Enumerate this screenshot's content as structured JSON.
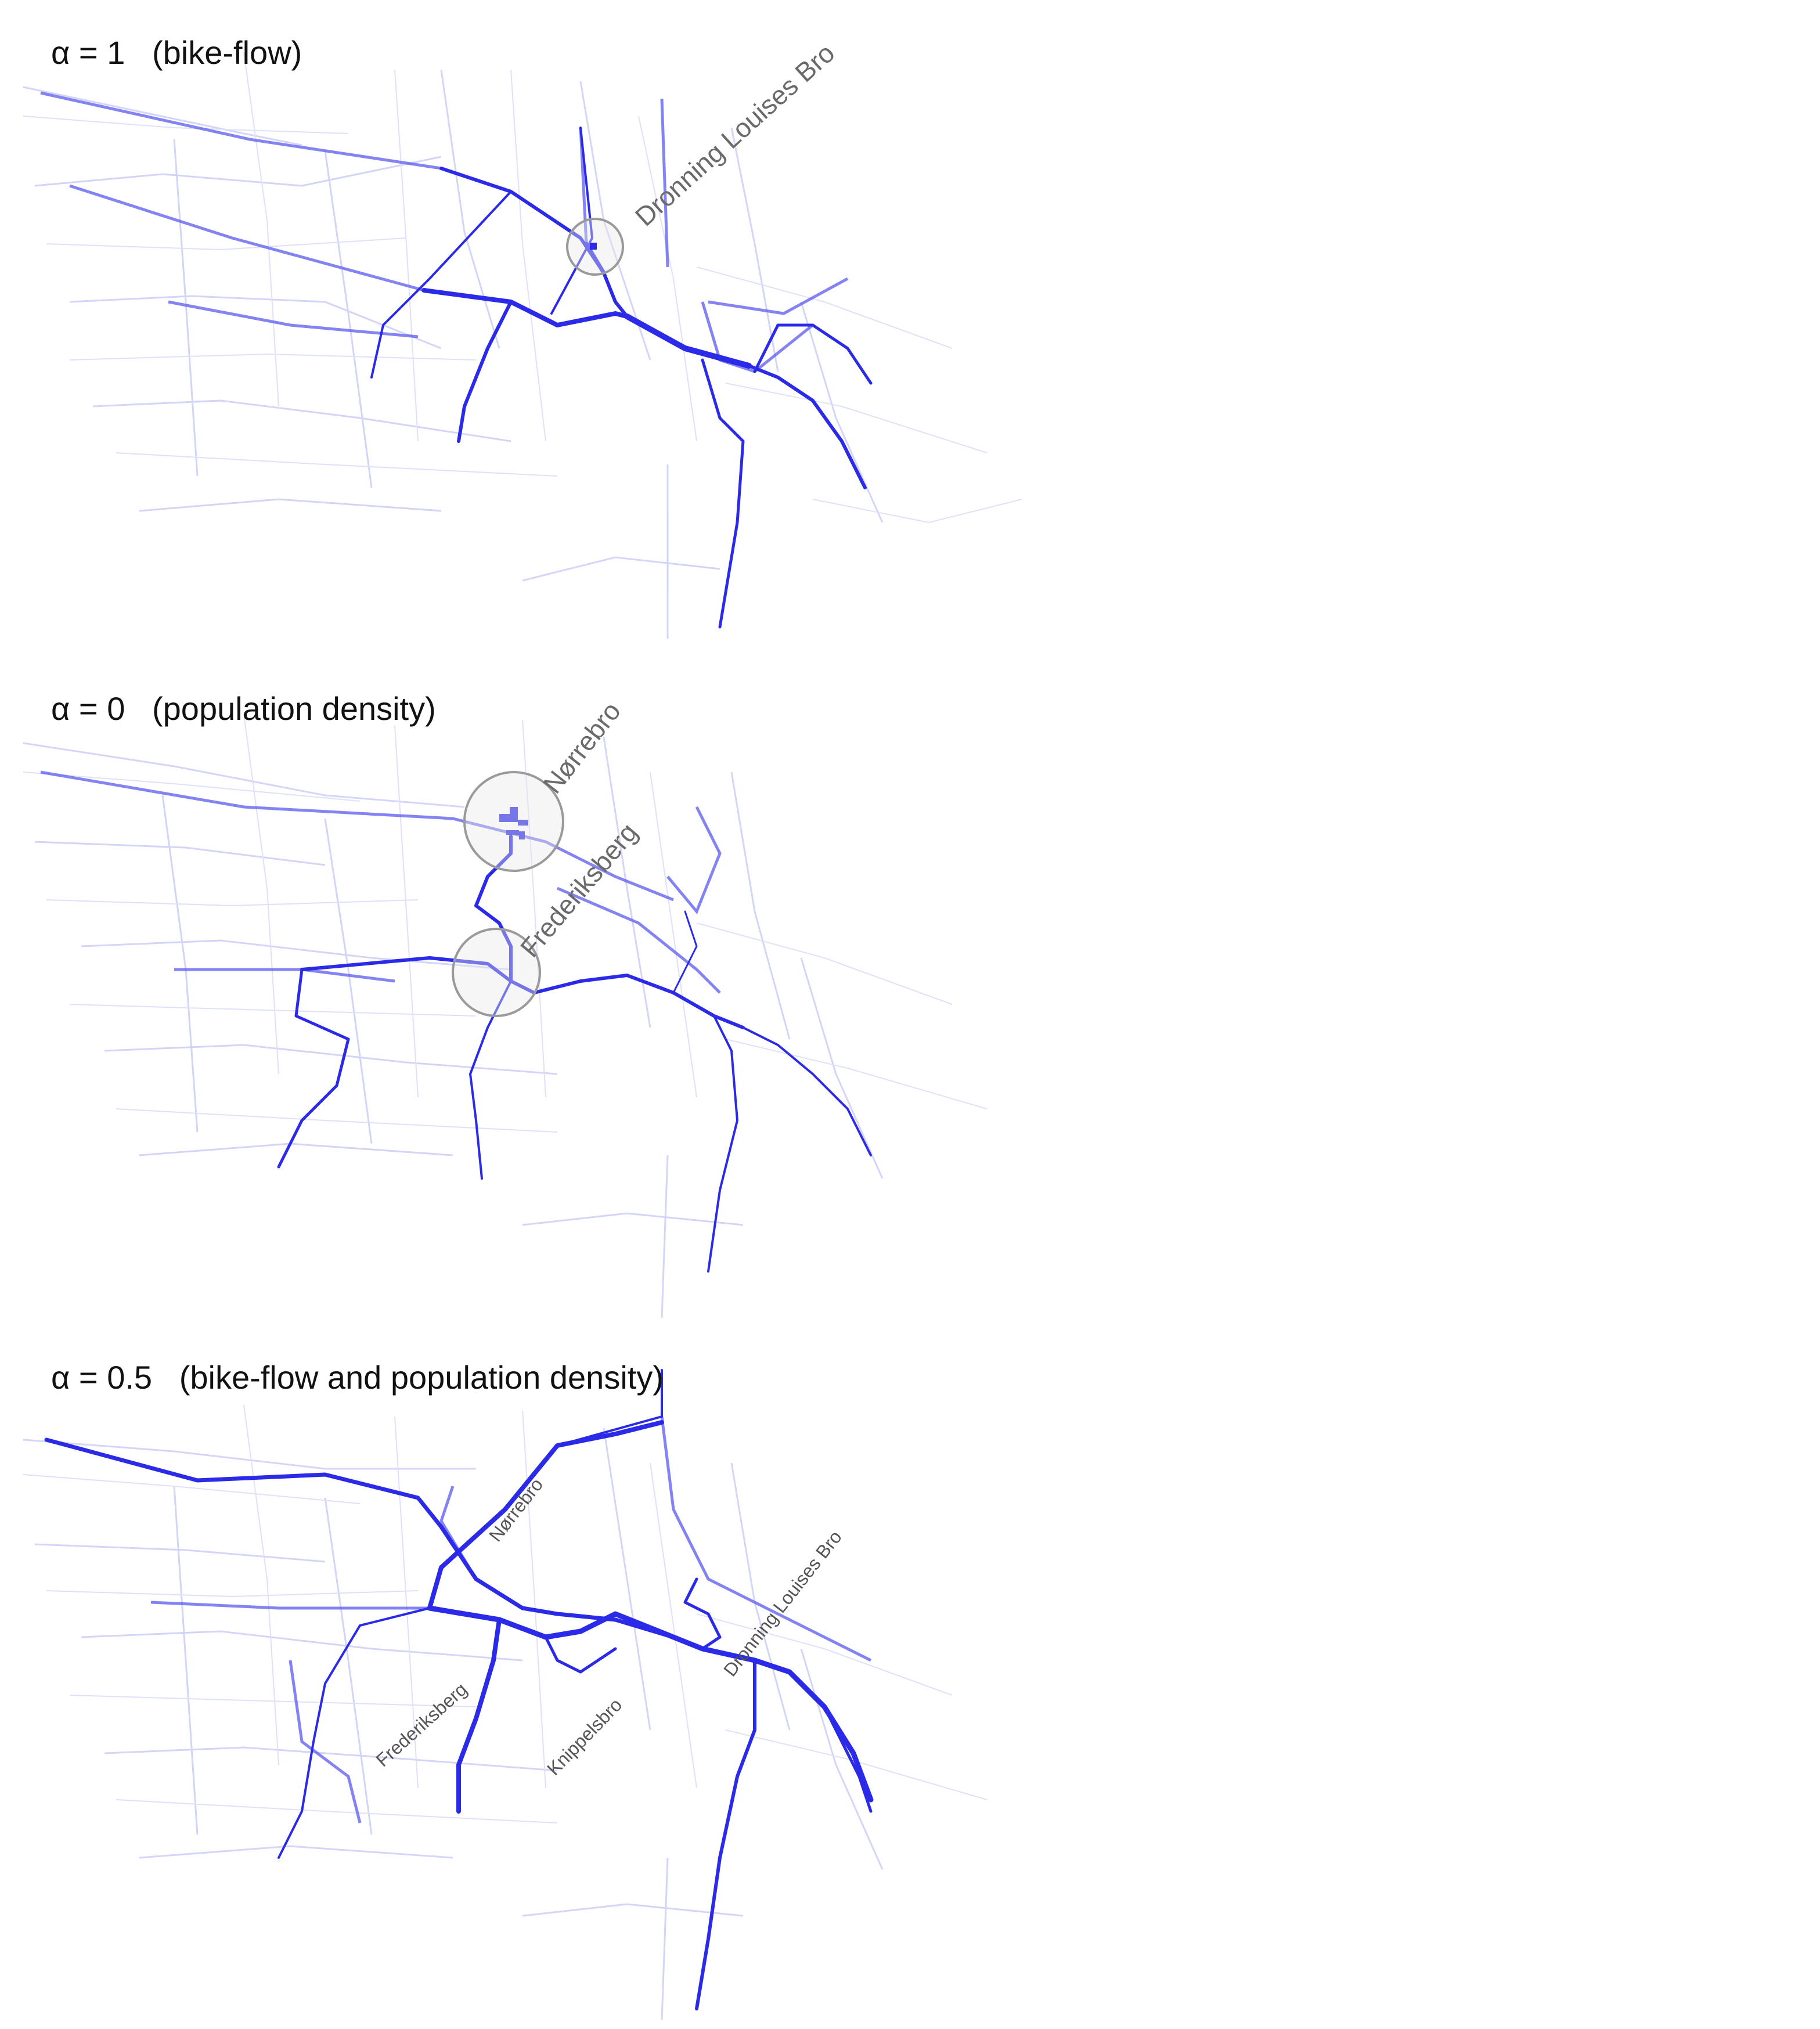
{
  "colors": {
    "route": "#2a2ae8",
    "faint_street": "#c7c9f6",
    "highlight_circle": "#9a9a9a",
    "label_gray": "#6a6a6a"
  },
  "panels": [
    {
      "id": "alpha-1",
      "title": "α = 1   (bike-flow)",
      "labels": [
        "Dronning Louises Bro"
      ]
    },
    {
      "id": "alpha-0",
      "title": "α = 0   (population density)",
      "labels": [
        "Nørrebro",
        "Frederiksberg"
      ]
    },
    {
      "id": "alpha-0.5",
      "title": "α = 0.5   (bike-flow and population density)",
      "labels": [
        "Nørrebro",
        "Dronning Louises Bro",
        "Frederiksberg",
        "Knippelsbro"
      ]
    }
  ]
}
